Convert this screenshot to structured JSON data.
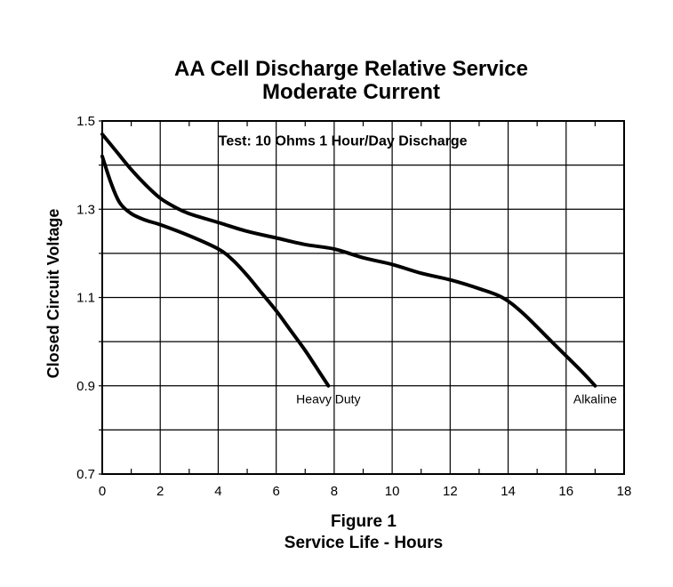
{
  "chart_data": {
    "type": "line",
    "title": [
      "AA Cell Discharge Relative Service",
      "Moderate Current"
    ],
    "annotation": "Test: 10 Ohms 1 Hour/Day Discharge",
    "xlabel": [
      "Figure 1",
      "Service Life - Hours"
    ],
    "ylabel": "Closed Circuit Voltage",
    "xlim": [
      0,
      18
    ],
    "ylim": [
      0.7,
      1.5
    ],
    "xticks": [
      0,
      2,
      4,
      6,
      8,
      10,
      12,
      14,
      16,
      18
    ],
    "yticks_labeled": [
      0.7,
      0.9,
      1.1,
      1.3,
      1.5
    ],
    "xtick_labels": [
      "0",
      "2",
      "4",
      "6",
      "8",
      "10",
      "12",
      "14",
      "16",
      "18"
    ],
    "ytick_labels": [
      "0.7",
      "0.9",
      "1.1",
      "1.3",
      "1.5"
    ],
    "grid": true,
    "series": [
      {
        "name": "Alkaline",
        "x": [
          0,
          0.5,
          1,
          1.5,
          2,
          2.5,
          3,
          4,
          5,
          6,
          7,
          8,
          9,
          10,
          11,
          12,
          13,
          13.8,
          14.5,
          15.5,
          16.5,
          17
        ],
        "y": [
          1.47,
          1.43,
          1.39,
          1.355,
          1.325,
          1.305,
          1.29,
          1.27,
          1.25,
          1.235,
          1.22,
          1.21,
          1.19,
          1.175,
          1.155,
          1.14,
          1.12,
          1.1,
          1.065,
          1.0,
          0.935,
          0.9
        ]
      },
      {
        "name": "Heavy Duty",
        "x": [
          0,
          0.3,
          0.6,
          1,
          1.5,
          2,
          3,
          4,
          4.5,
          5,
          5.5,
          6,
          6.5,
          7,
          7.5,
          7.8
        ],
        "y": [
          1.42,
          1.36,
          1.315,
          1.29,
          1.275,
          1.265,
          1.24,
          1.21,
          1.185,
          1.15,
          1.11,
          1.07,
          1.025,
          0.98,
          0.93,
          0.9
        ]
      }
    ],
    "series_labels": [
      {
        "text": "Heavy Duty",
        "x": 7.8,
        "y": 0.87
      },
      {
        "text": "Alkaline",
        "x": 17,
        "y": 0.87
      }
    ]
  }
}
